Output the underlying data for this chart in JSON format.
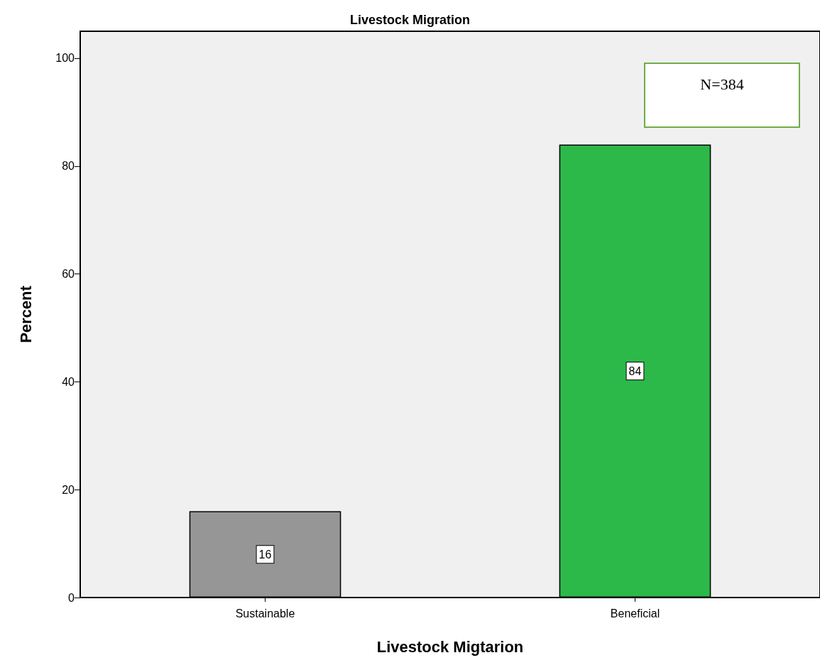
{
  "chart_data": {
    "type": "bar",
    "title": "Livestock Migration",
    "xlabel": "Livestock Migtarion",
    "ylabel": "Percent",
    "categories": [
      "Sustainable",
      "Beneficial"
    ],
    "values": [
      16,
      84
    ],
    "colors": [
      "#969696",
      "#2db84a"
    ],
    "ylim": [
      0,
      105
    ],
    "yticks": [
      0,
      20,
      40,
      60,
      80,
      100
    ],
    "data_labels": true,
    "grid": false,
    "annotations": [
      "N=384"
    ]
  }
}
